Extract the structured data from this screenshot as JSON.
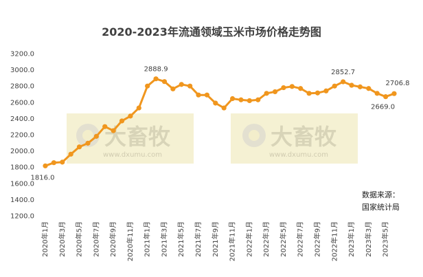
{
  "chart_data": {
    "type": "line",
    "title": "2020-2023年流通领域玉米市场价格走势图",
    "xlabel": "",
    "ylabel": "",
    "ylim": [
      1200,
      3200
    ],
    "yticks": [
      "1200.0",
      "1400.0",
      "1600.0",
      "1800.0",
      "2000.0",
      "2200.0",
      "2400.0",
      "2600.0",
      "2800.0",
      "3000.0",
      "3200.0"
    ],
    "grid": false,
    "x": [
      "2020年1月",
      "2020年2月",
      "2020年3月",
      "2020年4月",
      "2020年5月",
      "2020年6月",
      "2020年7月",
      "2020年8月",
      "2020年9月",
      "2020年10月",
      "2020年11月",
      "2020年12月",
      "2021年1月",
      "2021年2月",
      "2021年3月",
      "2021年4月",
      "2021年5月",
      "2021年6月",
      "2021年7月",
      "2021年8月",
      "2021年9月",
      "2021年10月",
      "2021年11月",
      "2021年12月",
      "2022年1月",
      "2022年2月",
      "2022年3月",
      "2022年4月",
      "2022年5月",
      "2022年6月",
      "2022年7月",
      "2022年8月",
      "2022年9月",
      "2022年10月",
      "2022年11月",
      "2022年12月",
      "2023年1月",
      "2023年2月",
      "2023年3月",
      "2023年4月",
      "2023年5月",
      "2023年6月"
    ],
    "x_tick_labels_shown": [
      "2020年1月",
      "2020年3月",
      "2020年5月",
      "2020年7月",
      "2020年9月",
      "2020年11月",
      "2021年1月",
      "2021年3月",
      "2021年5月",
      "2021年7月",
      "2021年9月",
      "2021年11月",
      "2022年1月",
      "2022年3月",
      "2022年5月",
      "2022年7月",
      "2022年9月",
      "2022年11月",
      "2023年1月",
      "2023年3月",
      "2023年5月"
    ],
    "series": [
      {
        "name": "",
        "color": "#f0961e",
        "values": [
          1816.0,
          1855,
          1862,
          1960,
          2050,
          2095,
          2180,
          2300,
          2250,
          2370,
          2430,
          2530,
          2800,
          2888.9,
          2855,
          2765,
          2820,
          2800,
          2690,
          2690,
          2590,
          2530,
          2645,
          2630,
          2620,
          2630,
          2710,
          2730,
          2780,
          2795,
          2770,
          2710,
          2715,
          2740,
          2800,
          2852.7,
          2810,
          2790,
          2770,
          2710,
          2669.0,
          2706.8
        ]
      }
    ],
    "data_labels": [
      {
        "index": 0,
        "text": "1816.0"
      },
      {
        "index": 13,
        "text": "2888.9"
      },
      {
        "index": 35,
        "text": "2852.7"
      },
      {
        "index": 40,
        "text": "2669.0"
      },
      {
        "index": 41,
        "text": "2706.8"
      }
    ]
  },
  "source_note": [
    "数据来源：",
    "国家统计局"
  ],
  "watermark": {
    "text": "大畜牧",
    "url": "www.dxumu.com"
  }
}
